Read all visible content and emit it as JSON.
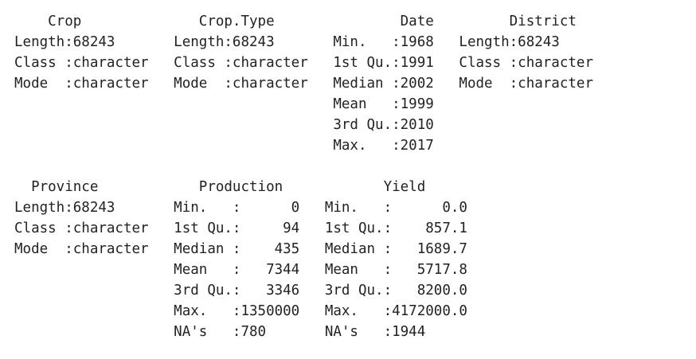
{
  "console_output": {
    "block1": {
      "header": "    Crop              Crop.Type               Date         District      ",
      "rows": [
        "Length:68243       Length:68243       Min.   :1968   Length:68243      ",
        "Class :character   Class :character   1st Qu.:1991   Class :character  ",
        "Mode  :character   Mode  :character   Median :2002   Mode  :character  ",
        "                                      Mean   :1999                     ",
        "                                      3rd Qu.:2010                     ",
        "                                      Max.   :2017                     "
      ]
    },
    "block2": {
      "header": "  Province            Production            Yield        ",
      "rows": [
        "Length:68243       Min.   :      0   Min.   :      0.0  ",
        "Class :character   1st Qu.:     94   1st Qu.:    857.1  ",
        "Mode  :character   Median :    435   Median :   1689.7  ",
        "                   Mean   :   7344   Mean   :   5717.8  ",
        "                   3rd Qu.:   3346   3rd Qu.:   8200.0  ",
        "                   Max.   :1350000   Max.   :4172000.0  ",
        "                   NA's   :780       NA's   :1944       "
      ]
    }
  }
}
